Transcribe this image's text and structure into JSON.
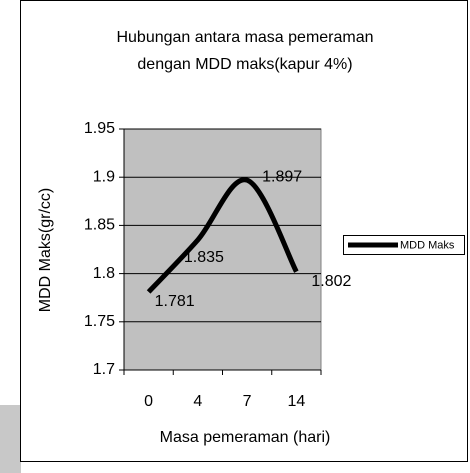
{
  "chart_data": {
    "type": "line",
    "title": [
      "Hubungan antara masa pemeraman",
      "dengan MDD maks(kapur 4%)"
    ],
    "x_label": "Masa pemeraman (hari)",
    "y_label": "MDD Maks(gr/cc)",
    "categories": [
      "0",
      "4",
      "7",
      "14"
    ],
    "series": [
      {
        "name": "MDD Maks",
        "color": "#000000",
        "values": [
          1.781,
          1.835,
          1.897,
          1.802
        ]
      }
    ],
    "ylim": [
      1.7,
      1.95
    ],
    "yticks": [
      1.7,
      1.75,
      1.8,
      1.85,
      1.9,
      1.95
    ],
    "grid": true,
    "smooth": true,
    "data_labels": true,
    "legend": "right",
    "plot_background": "#c0c0c0"
  }
}
